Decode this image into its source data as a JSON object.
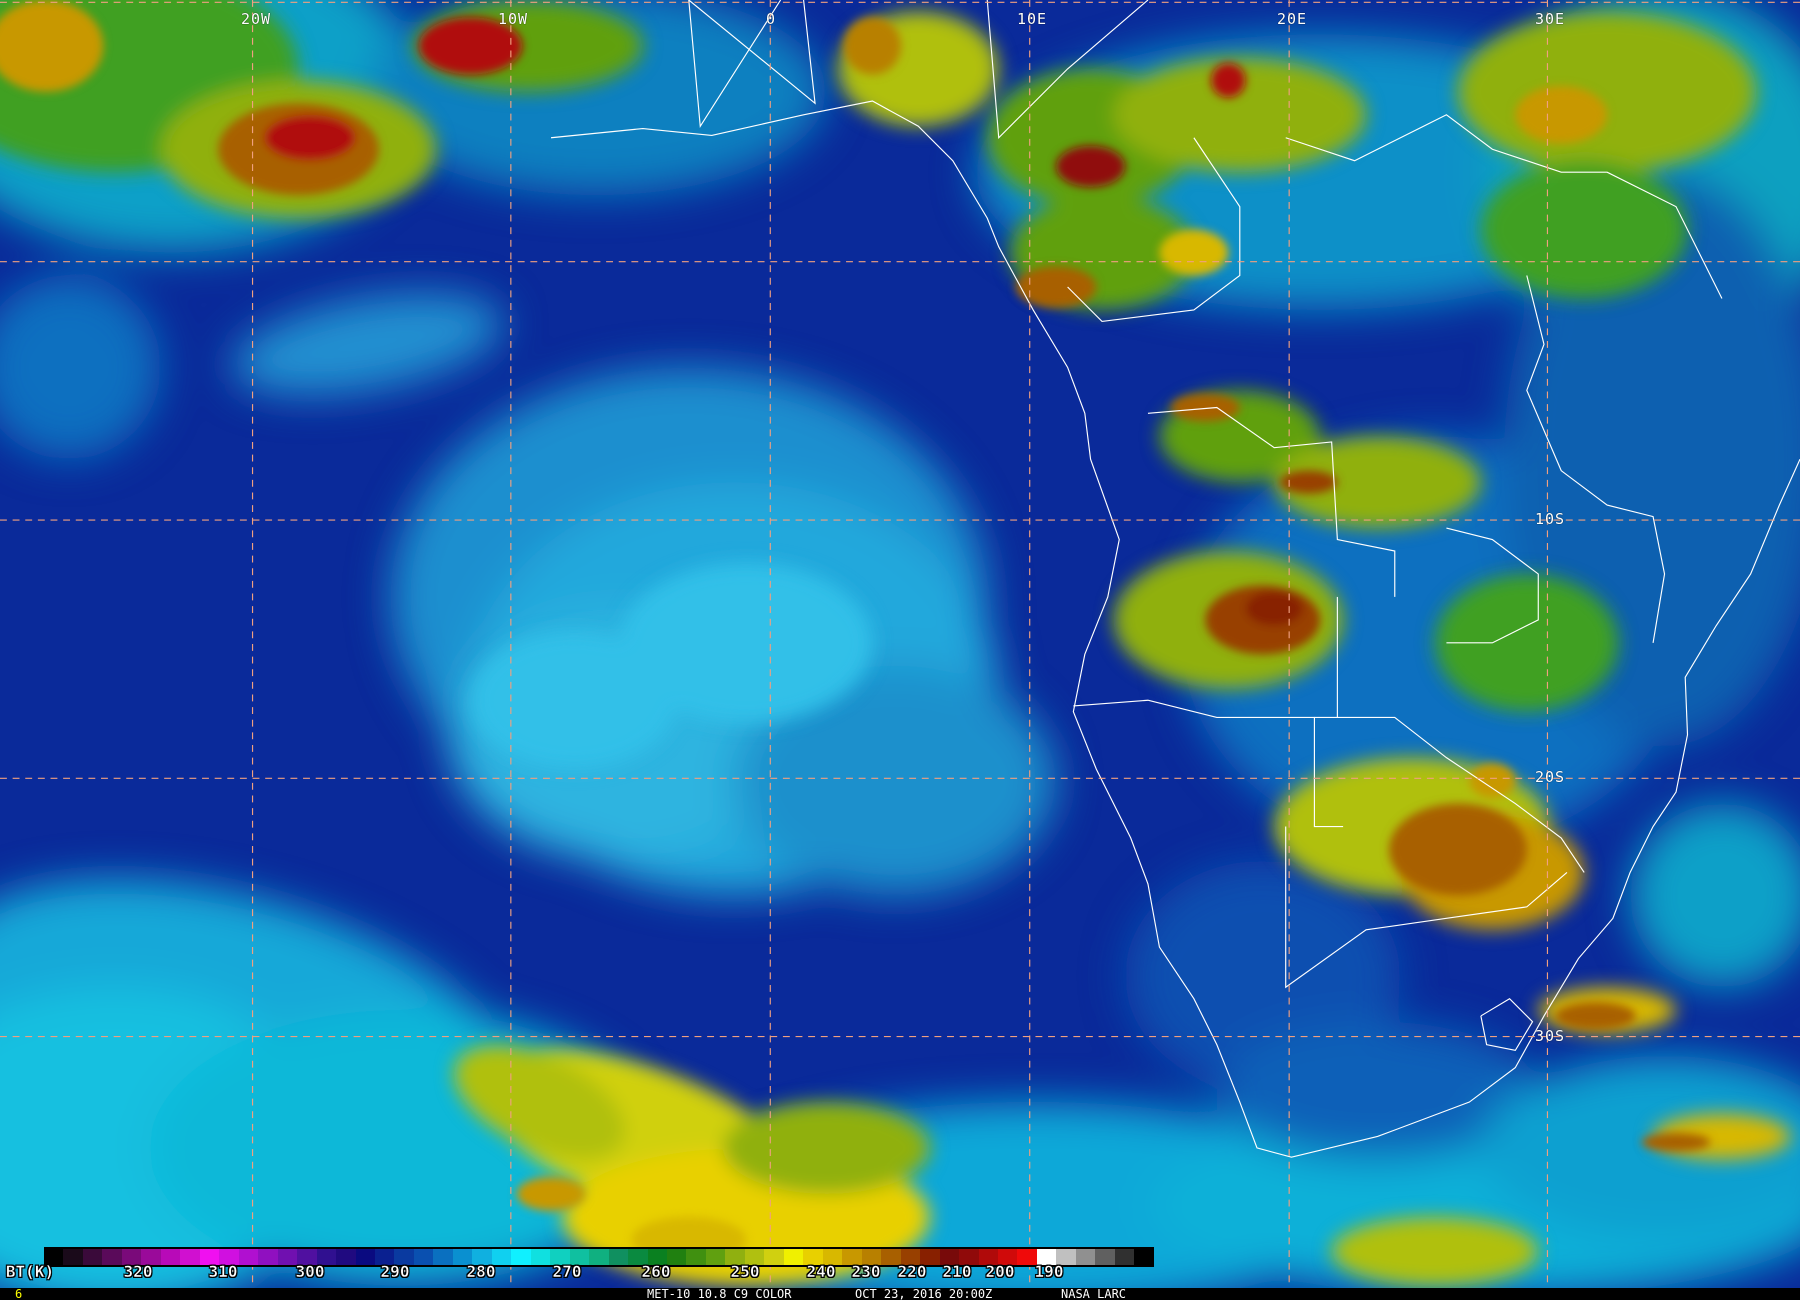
{
  "image": {
    "product": "MET-10 10.8 C9 COLOR",
    "datetime": "OCT 23, 2016 20:00Z",
    "source": "NASA LARC",
    "frame_number": "6"
  },
  "grid": {
    "longitude_labels": [
      "20W",
      "10W",
      "0",
      "10E",
      "20E",
      "30E"
    ],
    "latitude_labels": [
      "10S",
      "20S",
      "30S"
    ],
    "line_color": "#f0a080"
  },
  "colorbar": {
    "label": "BT(K)",
    "ticks": [
      "320",
      "310",
      "300",
      "290",
      "280",
      "270",
      "260",
      "250",
      "240",
      "230",
      "220",
      "210",
      "200",
      "190"
    ],
    "colors": [
      "#000000",
      "#1a0a1a",
      "#3a0a3a",
      "#5a0a5a",
      "#7a0a7a",
      "#9a0a9a",
      "#b80ab8",
      "#d010d0",
      "#f010f0",
      "#d010e0",
      "#b010d0",
      "#9010c0",
      "#7010b0",
      "#5010a0",
      "#301090",
      "#200a80",
      "#0a0a80",
      "#0a2090",
      "#0a3aa0",
      "#0a50b0",
      "#0a70c0",
      "#0a90d0",
      "#10b0e0",
      "#10d0f0",
      "#10f0ff",
      "#10e0e0",
      "#10d0c0",
      "#10c0a0",
      "#10b080",
      "#109060",
      "#0a8a40",
      "#0a8020",
      "#208010",
      "#409010",
      "#60a010",
      "#90b010",
      "#b0c010",
      "#d0d010",
      "#f0f000",
      "#e8d000",
      "#d8b800",
      "#c89800",
      "#b88000",
      "#a86000",
      "#984000",
      "#882000",
      "#780a0a",
      "#900a0a",
      "#b00a0a",
      "#d00a0a",
      "#f00a0a",
      "#ffffff",
      "#c0c0c0",
      "#909090",
      "#606060",
      "#303030",
      "#000000"
    ]
  }
}
